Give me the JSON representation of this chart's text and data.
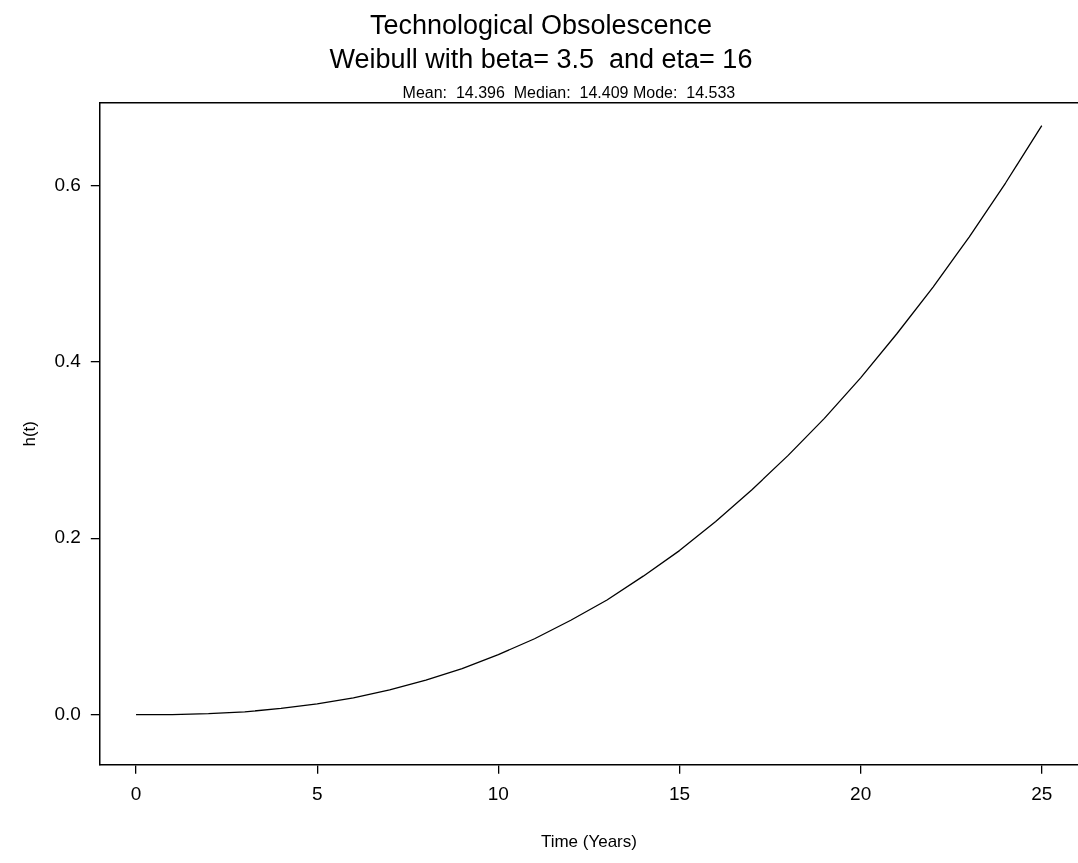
{
  "chart_data": {
    "type": "line",
    "title": "Technological Obsolescence",
    "subtitle": "Weibull with beta= 3.5  and eta= 16",
    "annotations": [
      "Mean:  14.396  Median:  14.409 Mode:  14.533"
    ],
    "xlabel": "Time (Years)",
    "ylabel": "h(t)",
    "x": [
      0,
      1,
      2,
      3,
      4,
      5,
      6,
      7,
      8,
      9,
      10,
      11,
      12,
      13,
      14,
      15,
      16,
      17,
      18,
      19,
      20,
      21,
      22,
      23,
      24,
      25
    ],
    "series": [
      {
        "color": "#000000",
        "values": [
          0,
          0,
          0.001,
          0.003,
          0.007,
          0.012,
          0.019,
          0.028,
          0.039,
          0.052,
          0.068,
          0.086,
          0.107,
          0.13,
          0.157,
          0.186,
          0.219,
          0.255,
          0.294,
          0.336,
          0.382,
          0.432,
          0.485,
          0.542,
          0.603,
          0.668
        ]
      }
    ],
    "xlim": [
      -1,
      26
    ],
    "ylim": [
      -0.057,
      0.694
    ],
    "xticks": [
      0,
      5,
      10,
      15,
      20,
      25
    ],
    "yticks": [
      {
        "value": 0,
        "label": "0.0"
      },
      {
        "value": 0.2,
        "label": "0.2"
      },
      {
        "value": 0.4,
        "label": "0.4"
      },
      {
        "value": 0.6,
        "label": "0.6"
      }
    ],
    "grid": false,
    "legend": false,
    "marker": "none",
    "line_style": "solid"
  }
}
